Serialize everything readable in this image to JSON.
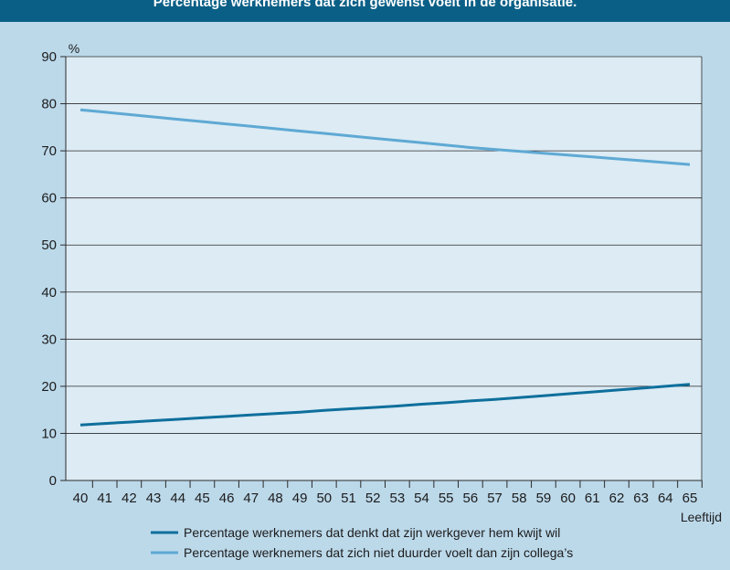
{
  "title": "Percentage werknemers dat zich gewenst voelt in de organisatie.",
  "colors": {
    "banner": "#0a5f86",
    "background": "#bcd9ea",
    "plot_area": "#dcebf4",
    "series_dark": "#0e6f9c",
    "series_light": "#5ea9d4"
  },
  "chart_data": {
    "type": "line",
    "ylabel": "%",
    "xlabel": "Leeftijd",
    "ylim": [
      0,
      90
    ],
    "yticks": [
      0,
      10,
      20,
      30,
      40,
      50,
      60,
      70,
      80,
      90
    ],
    "xlim": [
      40,
      65
    ],
    "x": [
      40,
      41,
      42,
      43,
      44,
      45,
      46,
      47,
      48,
      49,
      50,
      51,
      52,
      53,
      54,
      55,
      56,
      57,
      58,
      59,
      60,
      61,
      62,
      63,
      64,
      65
    ],
    "grid": true,
    "legend_position": "bottom",
    "series": [
      {
        "name": "Percentage werknemers dat denkt dat zijn werkgever hem kwijt wil",
        "color": "#0e6f9c",
        "values": [
          11.8,
          12.1,
          12.4,
          12.7,
          13.0,
          13.3,
          13.6,
          13.9,
          14.2,
          14.5,
          14.9,
          15.2,
          15.5,
          15.8,
          16.2,
          16.5,
          16.9,
          17.2,
          17.6,
          18.0,
          18.4,
          18.8,
          19.2,
          19.6,
          20.0,
          20.4
        ]
      },
      {
        "name": "Percentage werknemers dat zich niet duurder voelt dan zijn collega’s",
        "color": "#5ea9d4",
        "values": [
          78.7,
          78.2,
          77.7,
          77.2,
          76.7,
          76.2,
          75.7,
          75.2,
          74.7,
          74.2,
          73.7,
          73.2,
          72.7,
          72.2,
          71.7,
          71.2,
          70.7,
          70.3,
          69.9,
          69.5,
          69.1,
          68.7,
          68.3,
          67.9,
          67.5,
          67.1
        ]
      }
    ]
  }
}
